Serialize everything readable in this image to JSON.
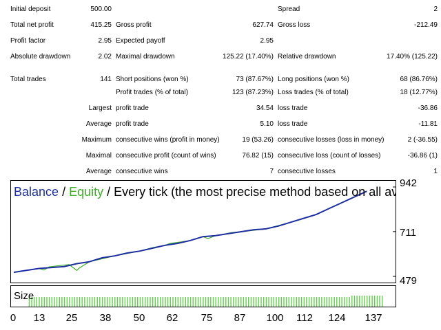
{
  "report": {
    "rows": [
      [
        {
          "text": "Initial deposit",
          "x": 15,
          "a": "l"
        },
        {
          "text": "500.00",
          "x": 162,
          "a": "r"
        },
        {
          "text": "Spread",
          "x": 403,
          "a": "l"
        },
        {
          "text": "2",
          "x": 635,
          "a": "r"
        }
      ],
      [
        {
          "text": "Total net profit",
          "x": 15,
          "a": "l"
        },
        {
          "text": "415.25",
          "x": 162,
          "a": "r"
        },
        {
          "text": "Gross profit",
          "x": 168,
          "a": "l"
        },
        {
          "text": "627.74",
          "x": 397,
          "a": "r"
        },
        {
          "text": "Gross loss",
          "x": 403,
          "a": "l"
        },
        {
          "text": "-212.49",
          "x": 635,
          "a": "r"
        }
      ],
      [
        {
          "text": "Profit factor",
          "x": 15,
          "a": "l"
        },
        {
          "text": "2.95",
          "x": 162,
          "a": "r"
        },
        {
          "text": "Expected payoff",
          "x": 168,
          "a": "l"
        },
        {
          "text": "2.95",
          "x": 397,
          "a": "r"
        }
      ],
      [
        {
          "text": "Absolute drawdown",
          "x": 15,
          "a": "l"
        },
        {
          "text": "2.02",
          "x": 162,
          "a": "r"
        },
        {
          "text": "Maximal drawdown",
          "x": 168,
          "a": "l"
        },
        {
          "text": "125.22 (17.40%)",
          "x": 397,
          "a": "r"
        },
        {
          "text": "Relative drawdown",
          "x": 403,
          "a": "l"
        },
        {
          "text": "17.40% (125.22)",
          "x": 635,
          "a": "r"
        }
      ],
      [],
      [
        {
          "text": "Total trades",
          "x": 15,
          "a": "l"
        },
        {
          "text": "141",
          "x": 162,
          "a": "r"
        },
        {
          "text": "Short positions (won %)",
          "x": 168,
          "a": "l"
        },
        {
          "text": "73 (87.67%)",
          "x": 397,
          "a": "r"
        },
        {
          "text": "Long positions (won %)",
          "x": 403,
          "a": "l"
        },
        {
          "text": "68 (86.76%)",
          "x": 635,
          "a": "r"
        }
      ],
      [
        {
          "text": "Profit trades (% of total)",
          "x": 168,
          "a": "l"
        },
        {
          "text": "123 (87.23%)",
          "x": 397,
          "a": "r"
        },
        {
          "text": "Loss trades (% of total)",
          "x": 403,
          "a": "l"
        },
        {
          "text": "18 (12.77%)",
          "x": 635,
          "a": "r"
        }
      ],
      [
        {
          "text": "Largest",
          "x": 162,
          "a": "r"
        },
        {
          "text": "profit trade",
          "x": 168,
          "a": "l"
        },
        {
          "text": "34.54",
          "x": 397,
          "a": "r"
        },
        {
          "text": "loss trade",
          "x": 403,
          "a": "l"
        },
        {
          "text": "-36.86",
          "x": 635,
          "a": "r"
        }
      ],
      [
        {
          "text": "Average",
          "x": 162,
          "a": "r"
        },
        {
          "text": "profit trade",
          "x": 168,
          "a": "l"
        },
        {
          "text": "5.10",
          "x": 397,
          "a": "r"
        },
        {
          "text": "loss trade",
          "x": 403,
          "a": "l"
        },
        {
          "text": "-11.81",
          "x": 635,
          "a": "r"
        }
      ],
      [
        {
          "text": "Maximum",
          "x": 162,
          "a": "r"
        },
        {
          "text": "consecutive wins (profit in money)",
          "x": 168,
          "a": "l"
        },
        {
          "text": "19 (53.26)",
          "x": 397,
          "a": "r"
        },
        {
          "text": "consecutive losses (loss in money)",
          "x": 403,
          "a": "l"
        },
        {
          "text": "2 (-36.55)",
          "x": 635,
          "a": "r"
        }
      ],
      [
        {
          "text": "Maximal",
          "x": 162,
          "a": "r"
        },
        {
          "text": "consecutive profit (count of wins)",
          "x": 168,
          "a": "l"
        },
        {
          "text": "76.82 (15)",
          "x": 397,
          "a": "r"
        },
        {
          "text": "consecutive loss (count of losses)",
          "x": 403,
          "a": "l"
        },
        {
          "text": "-36.86 (1)",
          "x": 635,
          "a": "r"
        }
      ],
      [
        {
          "text": "Average",
          "x": 162,
          "a": "r"
        },
        {
          "text": "consecutive wins",
          "x": 168,
          "a": "l"
        },
        {
          "text": "7",
          "x": 397,
          "a": "r"
        },
        {
          "text": "consecutive losses",
          "x": 403,
          "a": "l"
        },
        {
          "text": "1",
          "x": 635,
          "a": "r"
        }
      ]
    ]
  },
  "chart": {
    "title_balance": "Balance",
    "title_sep1": " / ",
    "title_equity": "Equity",
    "title_rest": " / Every tick (the most precise method based on all available least time",
    "size_label": "Size",
    "colors": {
      "balance": "#1d2fa0",
      "equity": "#3fae2a",
      "size": "#5fcf4a"
    },
    "y_ticks": [
      "942",
      "711",
      "479"
    ],
    "x_ticks": [
      "0",
      "13",
      "25",
      "38",
      "50",
      "62",
      "75",
      "87",
      "100",
      "112",
      "124",
      "137"
    ]
  },
  "chart_data": {
    "type": "line",
    "title": "Balance / Equity / Every tick (the most precise method based on all available least time",
    "xlabel": "",
    "ylabel": "",
    "x_ticks": [
      0,
      13,
      25,
      38,
      50,
      62,
      75,
      87,
      100,
      112,
      124,
      137
    ],
    "y_ticks": [
      942,
      711,
      479
    ],
    "xlim": [
      0,
      141
    ],
    "ylim": [
      479,
      942
    ],
    "series": [
      {
        "name": "Balance",
        "points": [
          [
            0,
            500
          ],
          [
            5,
            510
          ],
          [
            10,
            520
          ],
          [
            15,
            525
          ],
          [
            20,
            530
          ],
          [
            25,
            545
          ],
          [
            30,
            555
          ],
          [
            35,
            575
          ],
          [
            40,
            585
          ],
          [
            45,
            600
          ],
          [
            50,
            610
          ],
          [
            55,
            625
          ],
          [
            60,
            640
          ],
          [
            65,
            650
          ],
          [
            70,
            665
          ],
          [
            75,
            685
          ],
          [
            80,
            690
          ],
          [
            85,
            700
          ],
          [
            90,
            710
          ],
          [
            95,
            720
          ],
          [
            100,
            725
          ],
          [
            105,
            740
          ],
          [
            110,
            760
          ],
          [
            115,
            780
          ],
          [
            120,
            800
          ],
          [
            125,
            830
          ],
          [
            130,
            860
          ],
          [
            135,
            890
          ],
          [
            140,
            920
          ]
        ]
      },
      {
        "name": "Equity",
        "points": [
          [
            0,
            500
          ],
          [
            10,
            520
          ],
          [
            12,
            512
          ],
          [
            14,
            528
          ],
          [
            18,
            535
          ],
          [
            22,
            540
          ],
          [
            24,
            520
          ],
          [
            25,
            510
          ],
          [
            26,
            522
          ],
          [
            30,
            555
          ],
          [
            40,
            585
          ],
          [
            50,
            610
          ],
          [
            55,
            628
          ],
          [
            60,
            640
          ],
          [
            62,
            650
          ],
          [
            65,
            655
          ],
          [
            70,
            665
          ],
          [
            75,
            685
          ],
          [
            77,
            675
          ],
          [
            80,
            690
          ],
          [
            83,
            696
          ],
          [
            86,
            705
          ],
          [
            90,
            710
          ],
          [
            100,
            725
          ],
          [
            110,
            760
          ],
          [
            120,
            800
          ],
          [
            130,
            860
          ],
          [
            140,
            920
          ]
        ]
      }
    ],
    "size_bars": {
      "name": "Size",
      "from": 1,
      "to": 141,
      "value": 1
    },
    "grid": false,
    "legend": "none"
  }
}
